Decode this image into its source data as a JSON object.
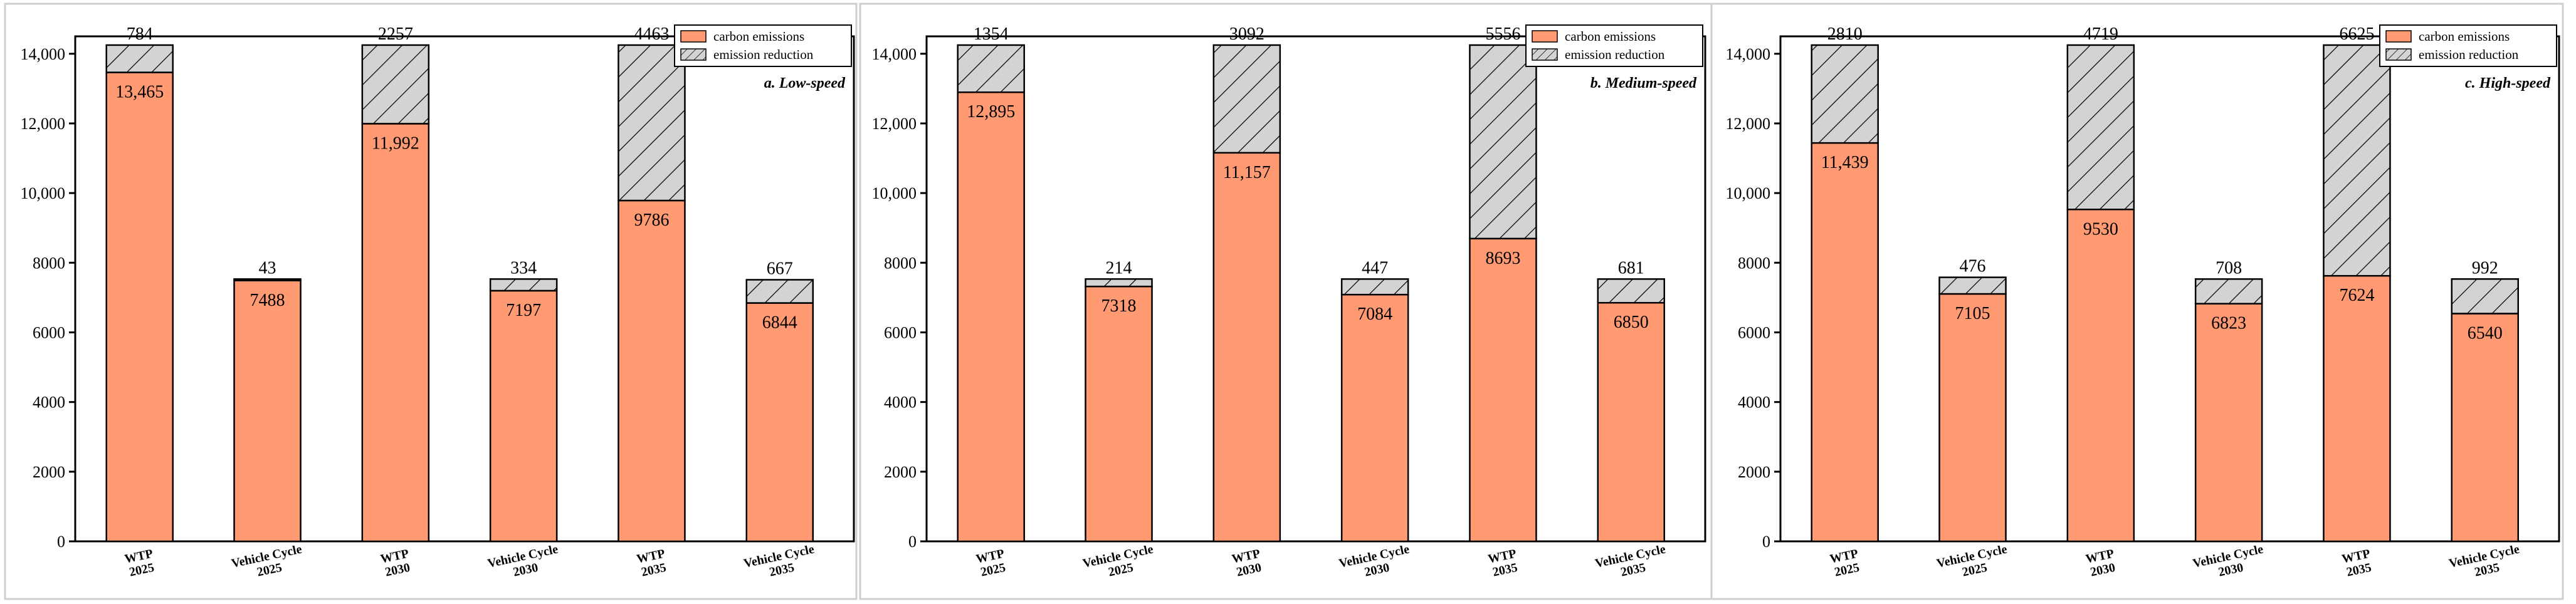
{
  "figure": {
    "colors": {
      "carbon": "#FF9A72",
      "reduction": "#D3D3D3",
      "hatch": "#000000"
    }
  },
  "chart_data": [
    {
      "type": "bar",
      "stacked": true,
      "title": "a. Low-speed",
      "categories": [
        [
          "WTP",
          "2025"
        ],
        [
          "Vehicle Cycle",
          "2025"
        ],
        [
          "WTP",
          "2030"
        ],
        [
          "Vehicle Cycle",
          "2030"
        ],
        [
          "WTP",
          "2035"
        ],
        [
          "Vehicle Cycle",
          "2035"
        ]
      ],
      "series": [
        {
          "name": "carbon emissions",
          "values": [
            13465,
            7488,
            11992,
            7197,
            9786,
            6844
          ],
          "labels": [
            "13,465",
            "7488",
            "11,992",
            "7197",
            "9786",
            "6844"
          ]
        },
        {
          "name": "emission reduction",
          "values": [
            784,
            43,
            2257,
            334,
            4463,
            667
          ],
          "labels": [
            "784",
            "43",
            "2257",
            "334",
            "4463",
            "667"
          ]
        }
      ],
      "ylim": [
        0,
        14500
      ],
      "yticks": [
        0,
        2000,
        4000,
        6000,
        8000,
        10000,
        12000,
        14000
      ],
      "ytick_labels": [
        "0",
        "2000",
        "4000",
        "6000",
        "8000",
        "10,000",
        "12,000",
        "14,000"
      ],
      "legend": "top-right"
    },
    {
      "type": "bar",
      "stacked": true,
      "title": "b. Medium-speed",
      "categories": [
        [
          "WTP",
          "2025"
        ],
        [
          "Vehicle Cycle",
          "2025"
        ],
        [
          "WTP",
          "2030"
        ],
        [
          "Vehicle Cycle",
          "2030"
        ],
        [
          "WTP",
          "2035"
        ],
        [
          "Vehicle Cycle",
          "2035"
        ]
      ],
      "series": [
        {
          "name": "carbon emissions",
          "values": [
            12895,
            7318,
            11157,
            7084,
            8693,
            6850
          ],
          "labels": [
            "12,895",
            "7318",
            "11,157",
            "7084",
            "8693",
            "6850"
          ]
        },
        {
          "name": "emission reduction",
          "values": [
            1354,
            214,
            3092,
            447,
            5556,
            681
          ],
          "labels": [
            "1354",
            "214",
            "3092",
            "447",
            "5556",
            "681"
          ]
        }
      ],
      "ylim": [
        0,
        14500
      ],
      "yticks": [
        0,
        2000,
        4000,
        6000,
        8000,
        10000,
        12000,
        14000
      ],
      "ytick_labels": [
        "0",
        "2000",
        "4000",
        "6000",
        "8000",
        "10,000",
        "12,000",
        "14,000"
      ],
      "legend": "top-right"
    },
    {
      "type": "bar",
      "stacked": true,
      "title": "c. High-speed",
      "categories": [
        [
          "WTP",
          "2025"
        ],
        [
          "Vehicle Cycle",
          "2025"
        ],
        [
          "WTP",
          "2030"
        ],
        [
          "Vehicle Cycle",
          "2030"
        ],
        [
          "WTP",
          "2035"
        ],
        [
          "Vehicle Cycle",
          "2035"
        ]
      ],
      "series": [
        {
          "name": "carbon emissions",
          "values": [
            11439,
            7105,
            9530,
            6823,
            7624,
            6540
          ],
          "labels": [
            "11,439",
            "7105",
            "9530",
            "6823",
            "7624",
            "6540"
          ]
        },
        {
          "name": "emission reduction",
          "values": [
            2810,
            476,
            4719,
            708,
            6625,
            992
          ],
          "labels": [
            "2810",
            "476",
            "4719",
            "708",
            "6625",
            "992"
          ]
        }
      ],
      "ylim": [
        0,
        14500
      ],
      "yticks": [
        0,
        2000,
        4000,
        6000,
        8000,
        10000,
        12000,
        14000
      ],
      "ytick_labels": [
        "0",
        "2000",
        "4000",
        "6000",
        "8000",
        "10,000",
        "12,000",
        "14,000"
      ],
      "legend": "top-right"
    }
  ]
}
